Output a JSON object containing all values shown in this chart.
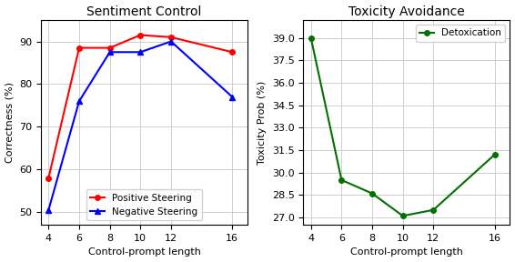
{
  "x": [
    4,
    6,
    8,
    10,
    12,
    16
  ],
  "positive_steering": [
    58.0,
    88.5,
    88.5,
    91.5,
    91.0,
    87.5
  ],
  "negative_steering": [
    50.5,
    76.0,
    87.5,
    87.5,
    90.0,
    77.0
  ],
  "detoxication": [
    39.0,
    29.5,
    28.6,
    27.1,
    27.5,
    31.2
  ],
  "left_title": "Sentiment Control",
  "right_title": "Toxicity Avoidance",
  "left_xlabel": "Control-prompt length",
  "right_xlabel": "Control-prompt length",
  "left_ylabel": "Correctness (%)",
  "right_ylabel": "Toxicity Prob (%)",
  "left_yticks": [
    50,
    60,
    70,
    80,
    90
  ],
  "right_yticks": [
    27.0,
    28.5,
    30.0,
    31.5,
    33.0,
    34.5,
    36.0,
    37.5,
    39.0
  ],
  "left_ylim": [
    47,
    95
  ],
  "right_ylim": [
    26.5,
    40.2
  ],
  "left_xlim": [
    3.5,
    17
  ],
  "right_xlim": [
    3.5,
    17
  ],
  "pos_color": "#ff0000",
  "neg_color": "#0000ff",
  "det_color": "#007000",
  "background": "#ffffff",
  "grid_color": "#c8c8c8",
  "title_fontsize": 10,
  "label_fontsize": 8,
  "tick_fontsize": 8,
  "legend_fontsize": 7.5,
  "linewidth": 1.5,
  "markersize": 4
}
